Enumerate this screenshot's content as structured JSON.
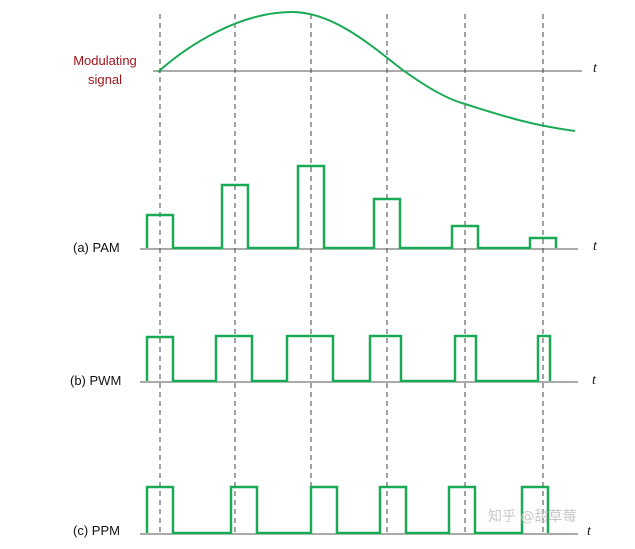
{
  "colors": {
    "signal": "#1aaa55",
    "axis": "#555555",
    "guide": "#444444",
    "modulating_label": "#a0151a"
  },
  "labels": {
    "modulating_line1": "Modulating",
    "modulating_line2": "signal",
    "pam": "(a) PAM",
    "pwm": "(b) PWM",
    "ppm": "(c) PPM",
    "t": "t"
  },
  "watermark": "知乎 @甜草莓"
}
